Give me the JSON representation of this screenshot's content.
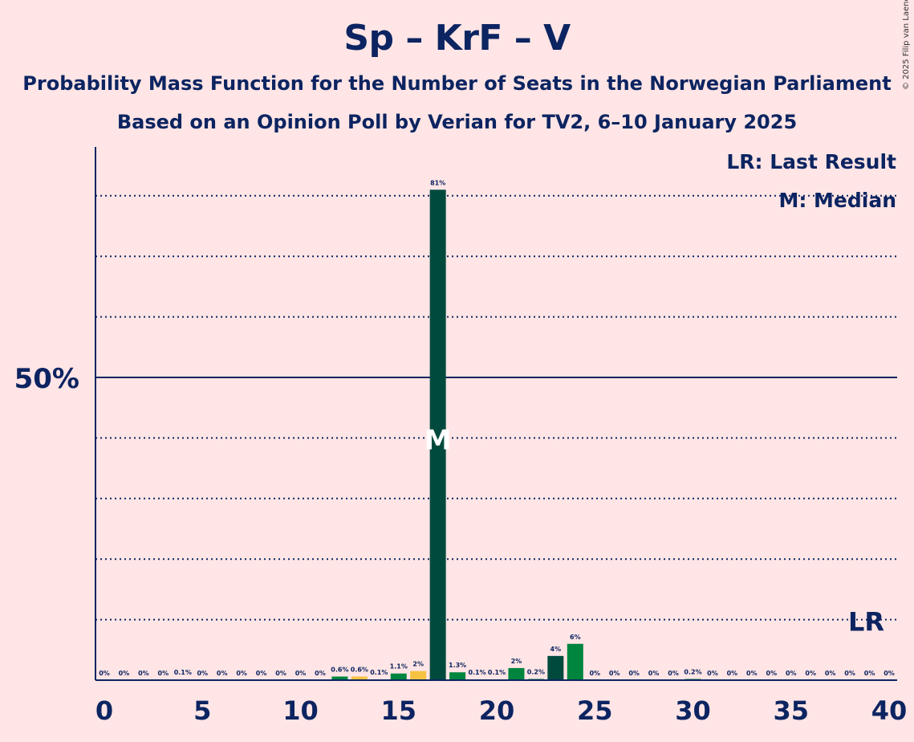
{
  "title": "Sp – KrF – V",
  "subtitle1": "Probability Mass Function for the Number of Seats in the Norwegian Parliament",
  "subtitle2": "Based on an Opinion Poll by Verian for TV2, 6–10 January 2025",
  "copyright": "© 2025 Filip van Laenen",
  "legend": {
    "last_result": "LR: Last Result",
    "median": "M: Median"
  },
  "chart_data": {
    "type": "bar",
    "title": "Sp – KrF – V",
    "x": [
      0,
      1,
      2,
      3,
      4,
      5,
      6,
      7,
      8,
      9,
      10,
      11,
      12,
      13,
      14,
      15,
      16,
      17,
      18,
      19,
      20,
      21,
      22,
      23,
      24,
      25,
      26,
      27,
      28,
      29,
      30,
      31,
      32,
      33,
      34,
      35,
      36,
      37,
      38,
      39,
      40
    ],
    "values": [
      0,
      0,
      0,
      0,
      0.1,
      0,
      0,
      0,
      0,
      0,
      0,
      0,
      0.6,
      0.6,
      0.1,
      1.1,
      1.5,
      81,
      1.3,
      0.1,
      0.1,
      2,
      0.2,
      4,
      6,
      0,
      0,
      0,
      0,
      0,
      0.2,
      0,
      0,
      0,
      0,
      0,
      0,
      0,
      0,
      0,
      0
    ],
    "labels": [
      "0%",
      "0%",
      "0%",
      "0%",
      "0.1%",
      "0%",
      "0%",
      "0%",
      "0%",
      "0%",
      "0%",
      "0%",
      "0.6%",
      "0.6%",
      "0.1%",
      "1.1%",
      "2%",
      "81%",
      "1.3%",
      "0.1%",
      "0.1%",
      "2%",
      "0.2%",
      "4%",
      "6%",
      "0%",
      "0%",
      "0%",
      "0%",
      "0%",
      "0.2%",
      "0%",
      "0%",
      "0%",
      "0%",
      "0%",
      "0%",
      "0%",
      "0%",
      "0%",
      "0%"
    ],
    "colors": {
      "default": "#00853f",
      "alt": "#f5c242",
      "median": "#004a3d",
      "dark": "#004a3d",
      "axis": "#0c2461",
      "background": "#ffe5e5"
    },
    "bar_colors": [
      "green",
      "green",
      "green",
      "green",
      "green",
      "green",
      "green",
      "green",
      "green",
      "green",
      "green",
      "green",
      "green",
      "alt",
      "green",
      "green",
      "alt",
      "median",
      "green",
      "green",
      "green",
      "green",
      "green",
      "dark",
      "green",
      "green",
      "green",
      "green",
      "green",
      "green",
      "green",
      "green",
      "green",
      "green",
      "green",
      "green",
      "green",
      "green",
      "green",
      "green",
      "green"
    ],
    "x_ticks": [
      "0",
      "5",
      "10",
      "15",
      "20",
      "25",
      "30",
      "35",
      "40"
    ],
    "x_tick_values": [
      0,
      5,
      10,
      15,
      20,
      25,
      30,
      35,
      40
    ],
    "y_ticks": [
      "50%"
    ],
    "y_tick_values": [
      50
    ],
    "ylim": [
      0,
      88
    ],
    "gridlines": [
      10,
      20,
      30,
      40,
      60,
      70,
      80
    ],
    "median_seat": 17,
    "median_marker": "M",
    "last_result_seat": 39,
    "last_result_marker": "LR",
    "grid": true
  }
}
